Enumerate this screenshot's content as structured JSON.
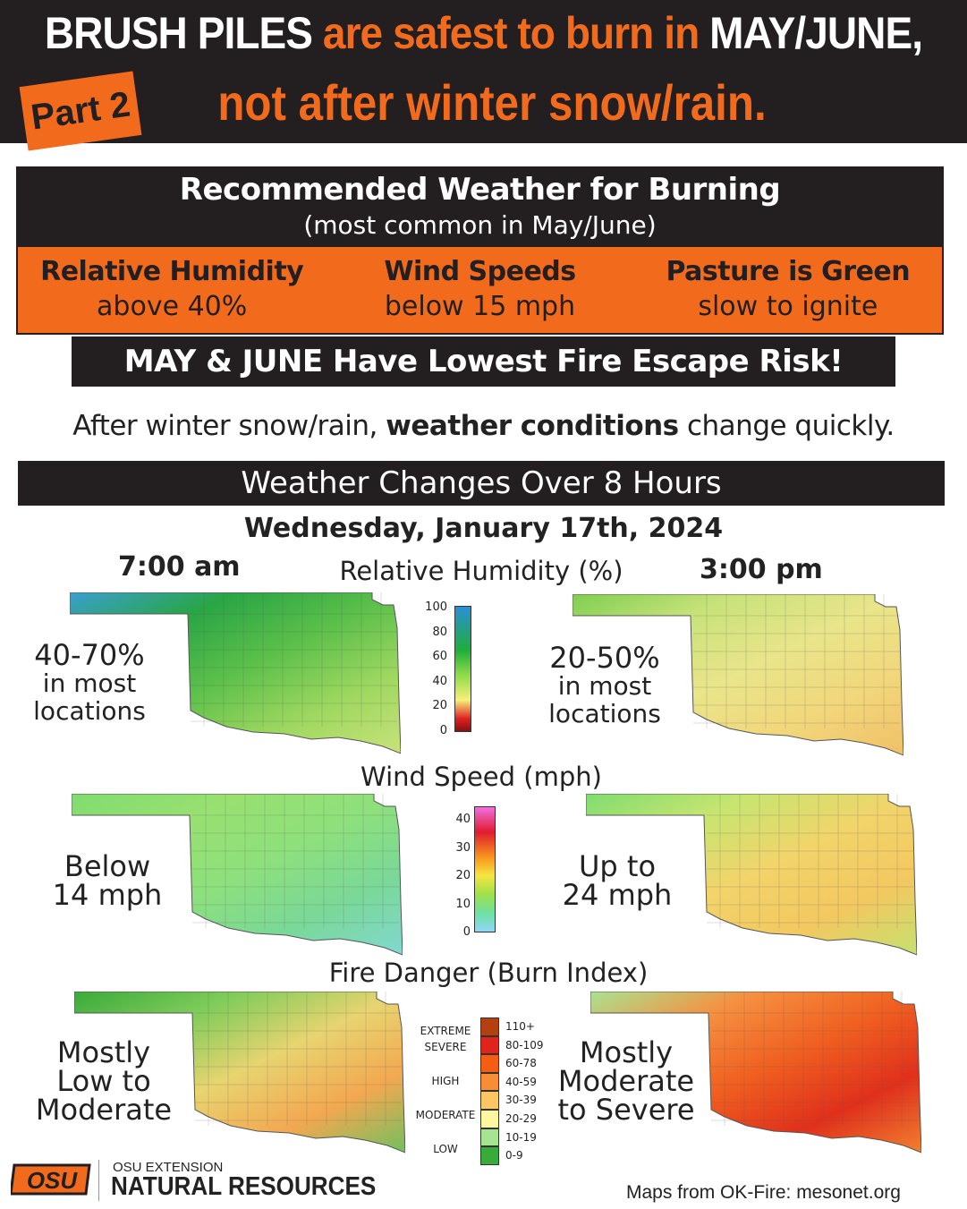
{
  "header": {
    "title_part1": "BRUSH PILES",
    "title_part2": "are safest to burn in",
    "title_part3": "MAY/JUNE,",
    "title_line2": "not after winter snow/rain.",
    "tag": "Part 2"
  },
  "recommended": {
    "title": "Recommended Weather for Burning",
    "subtitle": "(most common in May/June)",
    "items": [
      {
        "heading": "Relative Humidity",
        "value": "above 40%"
      },
      {
        "heading": "Wind Speeds",
        "value": "below 15 mph"
      },
      {
        "heading": "Pasture is Green",
        "value": "slow to ignite"
      }
    ],
    "banner": "MAY & JUNE Have Lowest Fire Escape Risk!"
  },
  "intro": {
    "before": "After winter snow/rain, ",
    "bold": "weather conditions",
    "after": " change quickly."
  },
  "section_band": "Weather Changes Over 8 Hours",
  "date": "Wednesday, January 17th, 2024",
  "times": {
    "morning": "7:00 am",
    "afternoon": "3:00 pm"
  },
  "rh": {
    "title": "Relative Humidity (%)",
    "left": [
      "40-70%",
      "in most",
      "locations"
    ],
    "right": [
      "20-50%",
      "in most",
      "locations"
    ],
    "ticks": [
      "100",
      "80",
      "60",
      "40",
      "20",
      "0"
    ]
  },
  "wind": {
    "title": "Wind Speed (mph)",
    "left": [
      "Below",
      "14 mph"
    ],
    "right": [
      "Up to",
      "24 mph"
    ],
    "ticks": [
      "40",
      "30",
      "20",
      "10",
      "0"
    ]
  },
  "fire": {
    "title": "Fire Danger (Burn Index)",
    "left": [
      "Mostly",
      "Low to",
      "Moderate"
    ],
    "right": [
      "Mostly",
      "Moderate",
      "to Severe"
    ],
    "categories": [
      "EXTREME",
      "SEVERE",
      "HIGH",
      "MODERATE",
      "LOW"
    ],
    "ranges": [
      "110+",
      "80-109",
      "60-78",
      "40-59",
      "30-39",
      "20-29",
      "10-19",
      "0-9"
    ],
    "colors": [
      "#b5400f",
      "#e0231b",
      "#f55d13",
      "#f98d35",
      "#fcc763",
      "#fdf7a0",
      "#a7e492",
      "#3aaa3a"
    ]
  },
  "footer": {
    "org_line1": "OSU EXTENSION",
    "org_line2": "NATURAL RESOURCES",
    "logo_text": "OSU",
    "source": "Maps from OK-Fire: mesonet.org"
  },
  "colors": {
    "accent": "#f26b1d",
    "dark": "#231f20"
  }
}
